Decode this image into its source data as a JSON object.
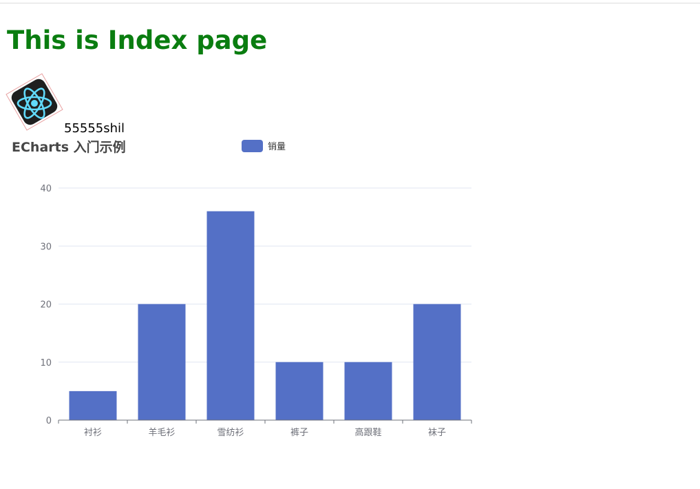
{
  "page": {
    "title": "This is Index page",
    "logo_caption": "55555shil",
    "colors": {
      "title": "#0a7d10",
      "series": "#5470c6",
      "logo_bg": "#1f1f1f",
      "logo_atom": "#61dafb"
    }
  },
  "logo_icon": "react-atom-icon",
  "chart_data": {
    "type": "bar",
    "title": "ECharts 入门示例",
    "legend": [
      "销量"
    ],
    "legend_position": "top-center",
    "categories": [
      "衬衫",
      "羊毛衫",
      "雪纺衫",
      "裤子",
      "高跟鞋",
      "袜子"
    ],
    "series": [
      {
        "name": "销量",
        "values": [
          5,
          20,
          36,
          10,
          10,
          20
        ]
      }
    ],
    "y_ticks": [
      "0",
      "10",
      "20",
      "30",
      "40"
    ],
    "ylim": [
      0,
      40
    ],
    "grid": true,
    "xlabel": "",
    "ylabel": ""
  }
}
